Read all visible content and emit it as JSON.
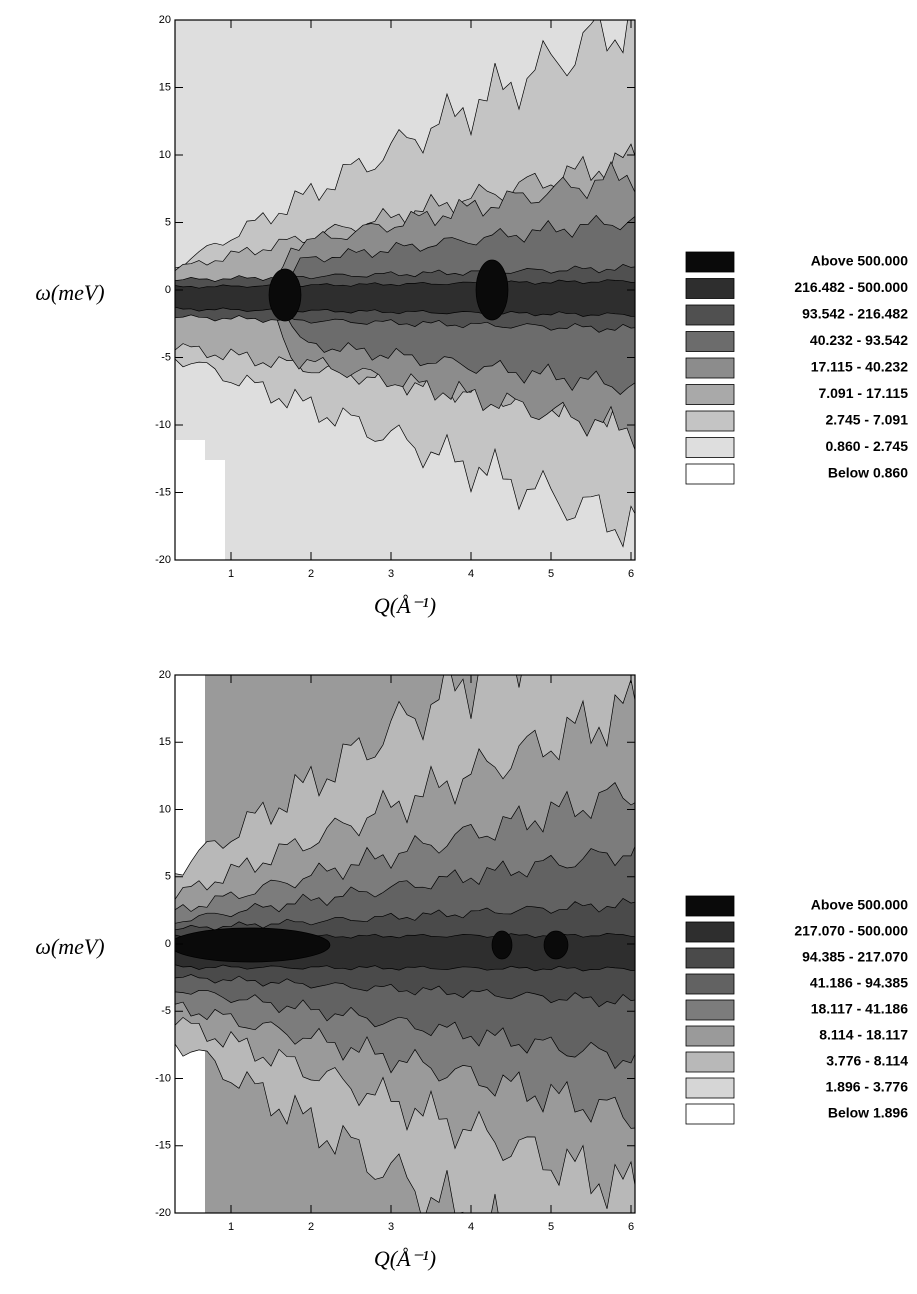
{
  "chart_data": [
    {
      "type": "contour",
      "xlabel": "Q(Å⁻¹)",
      "ylabel": "ω(meV)",
      "xlim": [
        0.3,
        6.05
      ],
      "ylim": [
        -20,
        20
      ],
      "xticks": [
        1,
        2,
        3,
        4,
        5,
        6
      ],
      "yticks": [
        -20,
        -15,
        -10,
        -5,
        0,
        5,
        10,
        15,
        20
      ],
      "series": [
        {
          "name": "Above 500.000",
          "color": "#0a0a0a"
        },
        {
          "name": "216.482 - 500.000",
          "color": "#2e2e2e"
        },
        {
          "name": "93.542 - 216.482",
          "color": "#505050"
        },
        {
          "name": "40.232 - 93.542",
          "color": "#6c6c6c"
        },
        {
          "name": "17.115 - 40.232",
          "color": "#8c8c8c"
        },
        {
          "name": "7.091 - 17.115",
          "color": "#a9a9a9"
        },
        {
          "name": "2.745 - 7.091",
          "color": "#c4c4c4"
        },
        {
          "name": "0.860 - 2.745",
          "color": "#dedede"
        },
        {
          "name": "Below 0.860",
          "color": "#ffffff"
        }
      ]
    },
    {
      "type": "contour",
      "xlabel": "Q(Å⁻¹)",
      "ylabel": "ω(meV)",
      "xlim": [
        0.3,
        6.05
      ],
      "ylim": [
        -20,
        20
      ],
      "xticks": [
        1,
        2,
        3,
        4,
        5,
        6
      ],
      "yticks": [
        -20,
        -15,
        -10,
        -5,
        0,
        5,
        10,
        15,
        20
      ],
      "series": [
        {
          "name": "Above 500.000",
          "color": "#0a0a0a"
        },
        {
          "name": "217.070 - 500.000",
          "color": "#2e2e2e"
        },
        {
          "name": "94.385 - 217.070",
          "color": "#4a4a4a"
        },
        {
          "name": "41.186 - 94.385",
          "color": "#626262"
        },
        {
          "name": "18.117 - 41.186",
          "color": "#7c7c7c"
        },
        {
          "name": "8.114 - 18.117",
          "color": "#9a9a9a"
        },
        {
          "name": "3.776 - 8.114",
          "color": "#b8b8b8"
        },
        {
          "name": "1.896 - 3.776",
          "color": "#d6d6d6"
        },
        {
          "name": "Below 1.896",
          "color": "#ffffff"
        }
      ]
    }
  ]
}
